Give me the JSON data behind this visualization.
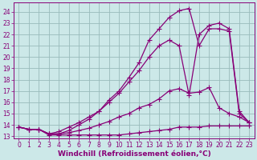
{
  "background_color": "#cce8e8",
  "grid_color": "#99bbbb",
  "line_color": "#880077",
  "marker": "+",
  "markersize": 4,
  "linewidth": 0.9,
  "xlabel": "Windchill (Refroidissement éolien,°C)",
  "xlabel_fontsize": 6.5,
  "xlim": [
    -0.5,
    23.5
  ],
  "ylim": [
    12.8,
    24.8
  ],
  "yticks": [
    13,
    14,
    15,
    16,
    17,
    18,
    19,
    20,
    21,
    22,
    23,
    24
  ],
  "xticks": [
    0,
    1,
    2,
    3,
    4,
    5,
    6,
    7,
    8,
    9,
    10,
    11,
    12,
    13,
    14,
    15,
    16,
    17,
    18,
    19,
    20,
    21,
    22,
    23
  ],
  "tick_fontsize": 5.5,
  "series": [
    {
      "x": [
        0,
        1,
        2,
        3,
        4,
        5,
        6,
        7,
        8,
        9,
        10,
        11,
        12,
        13,
        14,
        15,
        16,
        17,
        18,
        19,
        20,
        21,
        22,
        23
      ],
      "y": [
        13.8,
        13.6,
        13.6,
        13.1,
        13.1,
        13.1,
        13.1,
        13.1,
        13.1,
        13.1,
        13.1,
        13.2,
        13.3,
        13.4,
        13.5,
        13.6,
        13.8,
        13.8,
        13.8,
        13.9,
        13.9,
        13.9,
        13.9,
        13.9
      ]
    },
    {
      "x": [
        0,
        1,
        2,
        3,
        4,
        5,
        6,
        7,
        8,
        9,
        10,
        11,
        12,
        13,
        14,
        15,
        16,
        17,
        18,
        19,
        20,
        21,
        22,
        23
      ],
      "y": [
        13.8,
        13.6,
        13.6,
        13.2,
        13.2,
        13.3,
        13.5,
        13.7,
        14.0,
        14.3,
        14.7,
        15.0,
        15.5,
        15.8,
        16.3,
        17.0,
        17.2,
        16.8,
        16.9,
        17.3,
        15.5,
        15.0,
        14.7,
        14.2
      ]
    },
    {
      "x": [
        0,
        1,
        2,
        3,
        4,
        5,
        6,
        7,
        8,
        9,
        10,
        11,
        12,
        13,
        14,
        15,
        16,
        17,
        18,
        19,
        20,
        21,
        22,
        23
      ],
      "y": [
        13.8,
        13.6,
        13.6,
        13.2,
        13.4,
        13.8,
        14.2,
        14.7,
        15.2,
        16.0,
        16.8,
        17.8,
        18.8,
        20.0,
        21.0,
        21.5,
        21.0,
        16.6,
        22.0,
        22.8,
        23.0,
        22.5,
        15.2,
        14.2
      ]
    },
    {
      "x": [
        0,
        1,
        2,
        3,
        4,
        5,
        6,
        7,
        8,
        9,
        10,
        11,
        12,
        13,
        14,
        15,
        16,
        17,
        18,
        19,
        20,
        21,
        22,
        23
      ],
      "y": [
        13.8,
        13.6,
        13.6,
        13.2,
        13.2,
        13.5,
        14.0,
        14.5,
        15.2,
        16.2,
        17.0,
        18.2,
        19.5,
        21.5,
        22.5,
        23.5,
        24.1,
        24.3,
        21.0,
        22.5,
        22.5,
        22.3,
        15.0,
        14.2
      ]
    }
  ]
}
